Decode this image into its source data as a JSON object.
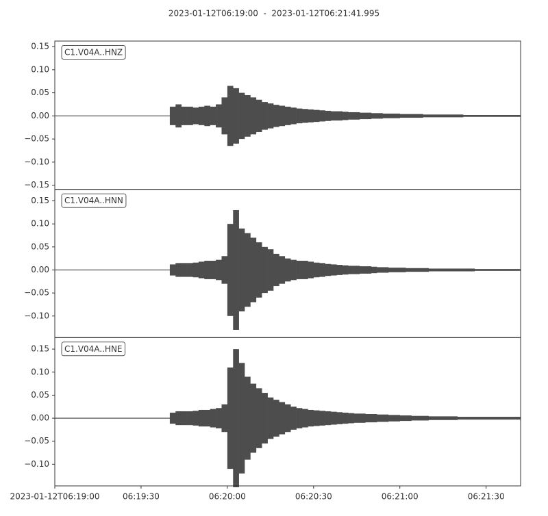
{
  "chart_data": {
    "type": "waveform",
    "title": "2023-01-12T06:19:00  -  2023-01-12T06:21:41.995",
    "color": "#4d4d4d",
    "xlim": [
      0,
      161.995
    ],
    "xticks": [
      {
        "value": 0,
        "label": "2023-01-12T06:19:00"
      },
      {
        "value": 30,
        "label": "06:19:30"
      },
      {
        "value": 60,
        "label": "06:20:00"
      },
      {
        "value": 90,
        "label": "06:20:30"
      },
      {
        "value": 120,
        "label": "06:21:00"
      },
      {
        "value": 150,
        "label": "06:21:30"
      }
    ],
    "x": [
      0,
      2,
      4,
      6,
      8,
      10,
      12,
      14,
      16,
      18,
      20,
      22,
      24,
      26,
      28,
      30,
      32,
      34,
      36,
      38,
      40,
      42,
      44,
      46,
      48,
      50,
      52,
      54,
      56,
      58,
      60,
      62,
      64,
      66,
      68,
      70,
      72,
      74,
      76,
      78,
      80,
      82,
      84,
      86,
      88,
      90,
      92,
      94,
      96,
      98,
      100,
      102,
      104,
      106,
      108,
      110,
      112,
      114,
      116,
      118,
      120,
      122,
      124,
      126,
      128,
      130,
      132,
      134,
      136,
      138,
      140,
      142,
      144,
      146,
      148,
      150,
      152,
      154,
      156,
      158,
      160
    ],
    "panels": [
      {
        "label": "C1.V04A..HNZ",
        "ylim": [
          -0.159,
          0.162
        ],
        "yticks": [
          0.15,
          {
            "value": 0.1,
            "label": "0.10"
          },
          0.05,
          {
            "value": 0,
            "label": "0.00"
          },
          {
            "value": -0.05,
            "label": "−0.05"
          },
          {
            "value": -0.1,
            "label": "−0.10"
          },
          {
            "value": -0.15,
            "label": "−0.15"
          }
        ],
        "values": [
          0,
          0,
          0,
          0,
          0,
          0,
          0,
          0,
          0,
          0,
          0,
          0,
          0,
          0,
          0,
          0,
          0,
          0,
          0,
          0,
          0.02,
          0.025,
          0.02,
          0.02,
          0.018,
          0.02,
          0.022,
          0.02,
          0.025,
          0.04,
          0.065,
          0.06,
          0.05,
          0.045,
          0.04,
          0.035,
          0.03,
          0.027,
          0.024,
          0.022,
          0.02,
          0.018,
          0.016,
          0.015,
          0.014,
          0.013,
          0.012,
          0.011,
          0.01,
          0.01,
          0.009,
          0.008,
          0.008,
          0.007,
          0.007,
          0.006,
          0.006,
          0.005,
          0.005,
          0.005,
          0.004,
          0.004,
          0.004,
          0.004,
          0.003,
          0.003,
          0.003,
          0.003,
          0.003,
          0.003,
          0.003,
          0.002,
          0.002,
          0.002,
          0.002,
          0.002,
          0.002,
          0.002,
          0.002,
          0.002,
          0.002
        ]
      },
      {
        "label": "C1.V04A..HNN",
        "ylim": [
          -0.147,
          0.175
        ],
        "yticks": [
          0.15,
          {
            "value": 0.1,
            "label": "0.10"
          },
          0.05,
          {
            "value": 0,
            "label": "0.00"
          },
          {
            "value": -0.05,
            "label": "−0.05"
          },
          {
            "value": -0.1,
            "label": "−0.10"
          }
        ],
        "values": [
          0,
          0,
          0,
          0,
          0,
          0,
          0,
          0,
          0,
          0,
          0,
          0,
          0,
          0,
          0,
          0,
          0,
          0,
          0,
          0,
          0.012,
          0.015,
          0.015,
          0.015,
          0.016,
          0.018,
          0.02,
          0.02,
          0.022,
          0.03,
          0.1,
          0.13,
          0.09,
          0.08,
          0.07,
          0.06,
          0.05,
          0.045,
          0.035,
          0.03,
          0.025,
          0.022,
          0.02,
          0.02,
          0.018,
          0.016,
          0.015,
          0.013,
          0.012,
          0.011,
          0.01,
          0.009,
          0.009,
          0.008,
          0.008,
          0.007,
          0.006,
          0.006,
          0.005,
          0.005,
          0.005,
          0.004,
          0.004,
          0.004,
          0.004,
          0.003,
          0.003,
          0.003,
          0.003,
          0.003,
          0.003,
          0.003,
          0.003,
          0.002,
          0.002,
          0.002,
          0.002,
          0.002,
          0.002,
          0.002,
          0.002
        ]
      },
      {
        "label": "C1.V04A..HNE",
        "ylim": [
          -0.147,
          0.175
        ],
        "yticks": [
          0.15,
          {
            "value": 0.1,
            "label": "0.10"
          },
          0.05,
          {
            "value": 0,
            "label": "0.00"
          },
          {
            "value": -0.05,
            "label": "−0.05"
          },
          {
            "value": -0.1,
            "label": "−0.10"
          }
        ],
        "values": [
          0,
          0,
          0,
          0,
          0,
          0,
          0,
          0,
          0,
          0,
          0,
          0,
          0,
          0,
          0,
          0,
          0,
          0,
          0,
          0,
          0.012,
          0.015,
          0.015,
          0.015,
          0.016,
          0.018,
          0.018,
          0.02,
          0.022,
          0.03,
          0.11,
          0.15,
          0.12,
          0.09,
          0.075,
          0.065,
          0.055,
          0.045,
          0.04,
          0.035,
          0.03,
          0.025,
          0.022,
          0.02,
          0.018,
          0.017,
          0.016,
          0.015,
          0.014,
          0.013,
          0.012,
          0.011,
          0.01,
          0.01,
          0.009,
          0.009,
          0.008,
          0.008,
          0.007,
          0.007,
          0.006,
          0.006,
          0.005,
          0.005,
          0.005,
          0.004,
          0.004,
          0.004,
          0.004,
          0.004,
          0.003,
          0.003,
          0.003,
          0.003,
          0.003,
          0.003,
          0.003,
          0.003,
          0.003,
          0.003,
          0.003
        ]
      }
    ]
  }
}
